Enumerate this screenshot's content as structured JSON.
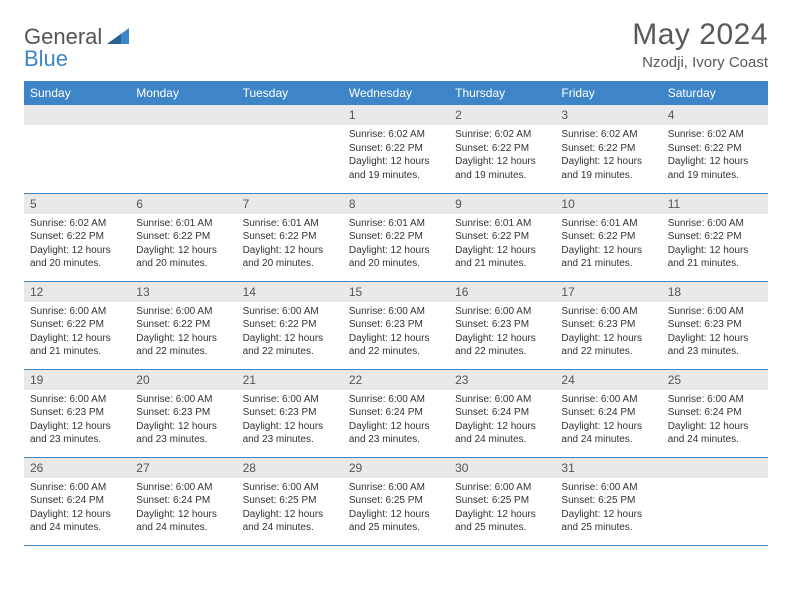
{
  "logo": {
    "word1": "General",
    "word2": "Blue"
  },
  "title": "May 2024",
  "subtitle": "Nzodji, Ivory Coast",
  "colors": {
    "header_bg": "#3d85c6",
    "header_fg": "#ffffff",
    "daynum_bg": "#e9e9e9",
    "text": "#333333",
    "rule": "#3d85c6",
    "logo_gray": "#555555",
    "logo_blue": "#3d85c6"
  },
  "weekdays": [
    "Sunday",
    "Monday",
    "Tuesday",
    "Wednesday",
    "Thursday",
    "Friday",
    "Saturday"
  ],
  "weeks": [
    [
      null,
      null,
      null,
      {
        "n": "1",
        "sr": "6:02 AM",
        "ss": "6:22 PM",
        "dl": "12 hours and 19 minutes."
      },
      {
        "n": "2",
        "sr": "6:02 AM",
        "ss": "6:22 PM",
        "dl": "12 hours and 19 minutes."
      },
      {
        "n": "3",
        "sr": "6:02 AM",
        "ss": "6:22 PM",
        "dl": "12 hours and 19 minutes."
      },
      {
        "n": "4",
        "sr": "6:02 AM",
        "ss": "6:22 PM",
        "dl": "12 hours and 19 minutes."
      }
    ],
    [
      {
        "n": "5",
        "sr": "6:02 AM",
        "ss": "6:22 PM",
        "dl": "12 hours and 20 minutes."
      },
      {
        "n": "6",
        "sr": "6:01 AM",
        "ss": "6:22 PM",
        "dl": "12 hours and 20 minutes."
      },
      {
        "n": "7",
        "sr": "6:01 AM",
        "ss": "6:22 PM",
        "dl": "12 hours and 20 minutes."
      },
      {
        "n": "8",
        "sr": "6:01 AM",
        "ss": "6:22 PM",
        "dl": "12 hours and 20 minutes."
      },
      {
        "n": "9",
        "sr": "6:01 AM",
        "ss": "6:22 PM",
        "dl": "12 hours and 21 minutes."
      },
      {
        "n": "10",
        "sr": "6:01 AM",
        "ss": "6:22 PM",
        "dl": "12 hours and 21 minutes."
      },
      {
        "n": "11",
        "sr": "6:00 AM",
        "ss": "6:22 PM",
        "dl": "12 hours and 21 minutes."
      }
    ],
    [
      {
        "n": "12",
        "sr": "6:00 AM",
        "ss": "6:22 PM",
        "dl": "12 hours and 21 minutes."
      },
      {
        "n": "13",
        "sr": "6:00 AM",
        "ss": "6:22 PM",
        "dl": "12 hours and 22 minutes."
      },
      {
        "n": "14",
        "sr": "6:00 AM",
        "ss": "6:22 PM",
        "dl": "12 hours and 22 minutes."
      },
      {
        "n": "15",
        "sr": "6:00 AM",
        "ss": "6:23 PM",
        "dl": "12 hours and 22 minutes."
      },
      {
        "n": "16",
        "sr": "6:00 AM",
        "ss": "6:23 PM",
        "dl": "12 hours and 22 minutes."
      },
      {
        "n": "17",
        "sr": "6:00 AM",
        "ss": "6:23 PM",
        "dl": "12 hours and 22 minutes."
      },
      {
        "n": "18",
        "sr": "6:00 AM",
        "ss": "6:23 PM",
        "dl": "12 hours and 23 minutes."
      }
    ],
    [
      {
        "n": "19",
        "sr": "6:00 AM",
        "ss": "6:23 PM",
        "dl": "12 hours and 23 minutes."
      },
      {
        "n": "20",
        "sr": "6:00 AM",
        "ss": "6:23 PM",
        "dl": "12 hours and 23 minutes."
      },
      {
        "n": "21",
        "sr": "6:00 AM",
        "ss": "6:23 PM",
        "dl": "12 hours and 23 minutes."
      },
      {
        "n": "22",
        "sr": "6:00 AM",
        "ss": "6:24 PM",
        "dl": "12 hours and 23 minutes."
      },
      {
        "n": "23",
        "sr": "6:00 AM",
        "ss": "6:24 PM",
        "dl": "12 hours and 24 minutes."
      },
      {
        "n": "24",
        "sr": "6:00 AM",
        "ss": "6:24 PM",
        "dl": "12 hours and 24 minutes."
      },
      {
        "n": "25",
        "sr": "6:00 AM",
        "ss": "6:24 PM",
        "dl": "12 hours and 24 minutes."
      }
    ],
    [
      {
        "n": "26",
        "sr": "6:00 AM",
        "ss": "6:24 PM",
        "dl": "12 hours and 24 minutes."
      },
      {
        "n": "27",
        "sr": "6:00 AM",
        "ss": "6:24 PM",
        "dl": "12 hours and 24 minutes."
      },
      {
        "n": "28",
        "sr": "6:00 AM",
        "ss": "6:25 PM",
        "dl": "12 hours and 24 minutes."
      },
      {
        "n": "29",
        "sr": "6:00 AM",
        "ss": "6:25 PM",
        "dl": "12 hours and 25 minutes."
      },
      {
        "n": "30",
        "sr": "6:00 AM",
        "ss": "6:25 PM",
        "dl": "12 hours and 25 minutes."
      },
      {
        "n": "31",
        "sr": "6:00 AM",
        "ss": "6:25 PM",
        "dl": "12 hours and 25 minutes."
      },
      null
    ]
  ],
  "labels": {
    "sunrise": "Sunrise:",
    "sunset": "Sunset:",
    "daylight": "Daylight:"
  }
}
